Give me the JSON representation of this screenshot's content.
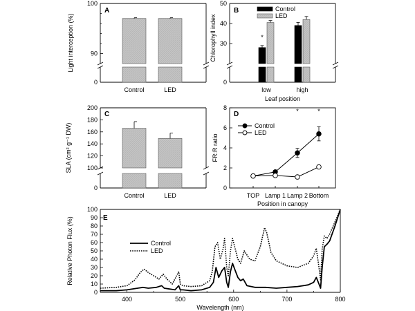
{
  "chart_data": [
    {
      "panel": "A",
      "type": "bar",
      "ylabel": "Light interception (%)",
      "categories": [
        "Control",
        "LED"
      ],
      "values": [
        97.0,
        97.0
      ],
      "errors": [
        0.15,
        0.15
      ],
      "ylim_upper": [
        88,
        100
      ],
      "yticks_upper": [
        "90",
        "100"
      ],
      "yticks_lower": [
        "0"
      ],
      "axis_break": true,
      "bar_color": "#c8c8c8"
    },
    {
      "panel": "B",
      "type": "bar",
      "ylabel": "Chlorophyll index",
      "xlabel": "Leaf position",
      "categories": [
        "low",
        "high"
      ],
      "series": [
        {
          "name": "Control",
          "color": "#000000",
          "values": [
            28,
            39
          ],
          "errors": [
            1.0,
            1.5
          ]
        },
        {
          "name": "LED",
          "color": "#c8c8c8",
          "values": [
            40.5,
            42
          ],
          "errors": [
            1.0,
            1.5
          ]
        }
      ],
      "ylim_upper": [
        20,
        50
      ],
      "yticks_upper": [
        "30",
        "40",
        "50"
      ],
      "yticks_lower": [
        "0"
      ],
      "axis_break": true,
      "significance": [
        "*",
        ""
      ],
      "legend": "top-center"
    },
    {
      "panel": "C",
      "type": "bar",
      "ylabel": "SLA (cm² g⁻¹ DW)",
      "categories": [
        "Control",
        "LED"
      ],
      "values": [
        166,
        149
      ],
      "errors": [
        11,
        9
      ],
      "ylim_upper": [
        100,
        200
      ],
      "yticks_upper": [
        "100",
        "120",
        "140",
        "160",
        "180",
        "200"
      ],
      "yticks_lower": [
        "0"
      ],
      "axis_break": true,
      "bar_color": "#c8c8c8"
    },
    {
      "panel": "D",
      "type": "line",
      "ylabel": "FR:R ratio",
      "xlabel": "Position in canopy",
      "categories": [
        "TOP",
        "Lamp 1",
        "Lamp 2",
        "Bottom"
      ],
      "series": [
        {
          "name": "Control",
          "marker": "filled",
          "values": [
            1.2,
            1.6,
            3.5,
            5.4
          ],
          "errors": [
            0.0,
            0.1,
            0.45,
            0.7
          ]
        },
        {
          "name": "LED",
          "marker": "open",
          "values": [
            1.2,
            1.25,
            1.1,
            2.1
          ],
          "errors": [
            0.0,
            0.05,
            0.05,
            0.1
          ]
        }
      ],
      "ylim": [
        0,
        8
      ],
      "yticks": [
        "0",
        "2",
        "4",
        "6",
        "8"
      ],
      "significance": [
        "",
        "",
        "*",
        "*"
      ],
      "legend": "top-left"
    },
    {
      "panel": "E",
      "type": "line",
      "ylabel": "Relative Photon Flux (%)",
      "xlabel": "Wavelength (nm)",
      "xlim": [
        350,
        800
      ],
      "ylim": [
        0,
        100
      ],
      "xticks": [
        "400",
        "500",
        "600",
        "700",
        "800"
      ],
      "yticks": [
        "0",
        "10",
        "20",
        "30",
        "40",
        "50",
        "60",
        "70",
        "80",
        "90",
        "100"
      ],
      "legend": "upper-left",
      "series": [
        {
          "name": "Control",
          "style": "solid",
          "x": [
            350,
            380,
            400,
            420,
            430,
            440,
            455,
            465,
            470,
            480,
            490,
            497,
            500,
            505,
            520,
            540,
            555,
            562,
            567,
            572,
            578,
            583,
            587,
            590,
            594,
            598,
            602,
            608,
            613,
            618,
            625,
            640,
            660,
            680,
            700,
            720,
            740,
            750,
            755,
            760,
            763,
            766,
            770,
            775,
            780,
            790,
            800
          ],
          "y": [
            2,
            2,
            3,
            5,
            6,
            5,
            6,
            8,
            5,
            4,
            3,
            8,
            3,
            3,
            2,
            3,
            6,
            12,
            30,
            18,
            26,
            30,
            12,
            6,
            25,
            35,
            28,
            18,
            14,
            16,
            8,
            6,
            6,
            5,
            6,
            7,
            9,
            12,
            18,
            10,
            5,
            30,
            55,
            58,
            62,
            80,
            100
          ]
        },
        {
          "name": "LED",
          "style": "dotted",
          "x": [
            350,
            380,
            400,
            415,
            425,
            432,
            440,
            450,
            460,
            468,
            475,
            485,
            497,
            500,
            505,
            520,
            540,
            555,
            560,
            565,
            570,
            575,
            580,
            583,
            587,
            590,
            594,
            598,
            602,
            608,
            613,
            620,
            630,
            640,
            650,
            658,
            662,
            670,
            680,
            700,
            720,
            740,
            750,
            755,
            760,
            763,
            766,
            770,
            775,
            780,
            790,
            800
          ],
          "y": [
            5,
            6,
            8,
            15,
            24,
            28,
            24,
            20,
            16,
            22,
            16,
            10,
            25,
            10,
            8,
            7,
            8,
            14,
            25,
            55,
            60,
            40,
            52,
            65,
            30,
            20,
            50,
            65,
            55,
            40,
            35,
            50,
            40,
            38,
            55,
            78,
            72,
            48,
            38,
            32,
            30,
            35,
            44,
            53,
            30,
            15,
            52,
            68,
            65,
            70,
            85,
            100
          ]
        }
      ]
    }
  ]
}
